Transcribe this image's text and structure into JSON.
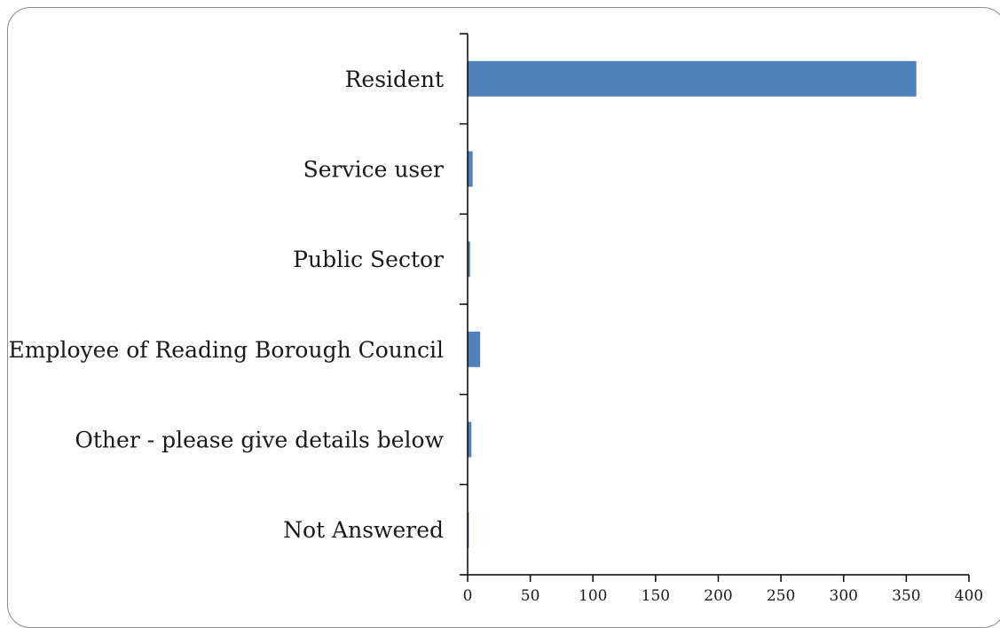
{
  "chart_data": {
    "type": "bar",
    "orientation": "horizontal",
    "categories": [
      "Resident",
      "Service user",
      "Public Sector",
      "Employee of Reading Borough Council",
      "Other - please give details below",
      "Not Answered"
    ],
    "values": [
      358,
      4,
      2,
      10,
      3,
      1
    ],
    "xlim": [
      0,
      400
    ],
    "x_ticks": [
      "0",
      "50",
      "100",
      "150",
      "200",
      "250",
      "300",
      "350",
      "400"
    ],
    "title": "",
    "xlabel": "",
    "ylabel": "",
    "grid": false,
    "legend": "none",
    "bar_color": "#4F81BD",
    "axis_color": "#000000"
  }
}
